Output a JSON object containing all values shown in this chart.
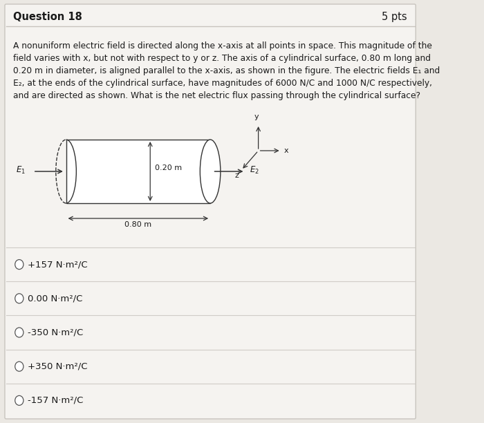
{
  "title": "Question 18",
  "pts": "5 pts",
  "question_lines": [
    "A nonuniform electric field is directed along the x-axis at all points in space. This magnitude of the",
    "field varies with x, but not with respect to y or z. The axis of a cylindrical surface, 0.80 m long and",
    "0.20 m in diameter, is aligned parallel to the x-axis, as shown in the figure. The electric fields E₁ and",
    "E₂, at the ends of the cylindrical surface, have magnitudes of 6000 N/C and 1000 N/C respectively,",
    "and are directed as shown. What is the net electric flux passing through the cylindrical surface?"
  ],
  "choices": [
    "+157 N·m²/C",
    "0.00 N·m²/C",
    "-350 N·m²/C",
    "+350 N·m²/C",
    "-157 N·m²/C"
  ],
  "background_color": "#ebe8e3",
  "card_color": "#f5f3f0",
  "border_color": "#c8c4be",
  "divider_color": "#d0ccc7",
  "text_color": "#1a1a1a",
  "title_fontsize": 10.5,
  "body_fontsize": 8.8,
  "choice_fontsize": 9.5,
  "diagram_label_fontsize": 8.5,
  "axis_label_fontsize": 8
}
